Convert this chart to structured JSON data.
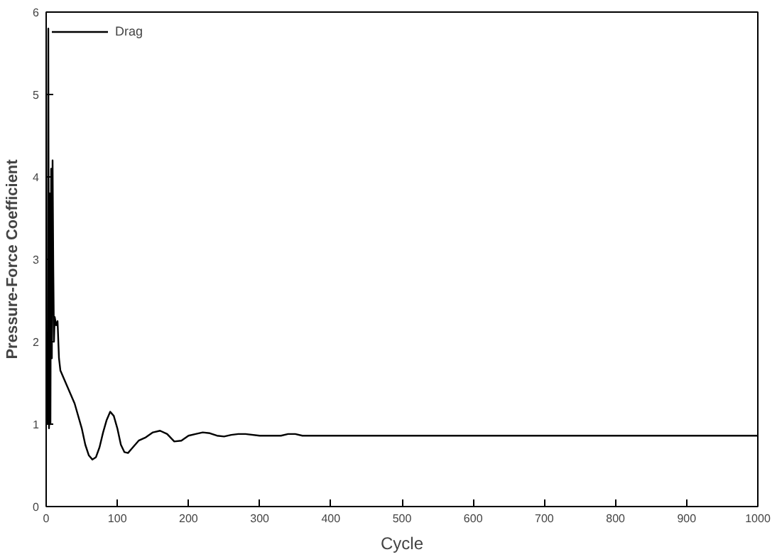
{
  "chart_data": {
    "type": "line",
    "xlabel": "Cycle",
    "ylabel": "Pressure-Force Coefficient",
    "xlim": [
      0,
      1000
    ],
    "ylim": [
      0,
      6
    ],
    "xticks": [
      0,
      100,
      200,
      300,
      400,
      500,
      600,
      700,
      800,
      900,
      1000
    ],
    "yticks": [
      0,
      1,
      2,
      3,
      4,
      5,
      6
    ],
    "grid": false,
    "legend": "top left",
    "marker": "none",
    "line_style": "solid",
    "series": [
      {
        "name": "Drag",
        "color": "#000000",
        "x": [
          2,
          3,
          4,
          5,
          6,
          7,
          8,
          9,
          10,
          11,
          12,
          14,
          16,
          18,
          20,
          30,
          40,
          50,
          55,
          60,
          65,
          70,
          75,
          80,
          85,
          90,
          95,
          100,
          105,
          110,
          115,
          120,
          130,
          140,
          150,
          160,
          170,
          180,
          190,
          200,
          210,
          220,
          230,
          240,
          250,
          260,
          270,
          280,
          300,
          330,
          340,
          350,
          360,
          400,
          1000
        ],
        "values": [
          1.0,
          5.8,
          0.95,
          3.8,
          1.0,
          4.1,
          1.8,
          4.2,
          2.9,
          2.0,
          2.3,
          2.2,
          2.25,
          1.8,
          1.65,
          1.45,
          1.25,
          0.95,
          0.75,
          0.62,
          0.57,
          0.6,
          0.72,
          0.9,
          1.05,
          1.15,
          1.1,
          0.95,
          0.75,
          0.66,
          0.65,
          0.7,
          0.8,
          0.84,
          0.9,
          0.92,
          0.88,
          0.79,
          0.8,
          0.86,
          0.88,
          0.9,
          0.89,
          0.86,
          0.85,
          0.87,
          0.88,
          0.88,
          0.86,
          0.86,
          0.88,
          0.88,
          0.86,
          0.86,
          0.86
        ]
      }
    ]
  }
}
